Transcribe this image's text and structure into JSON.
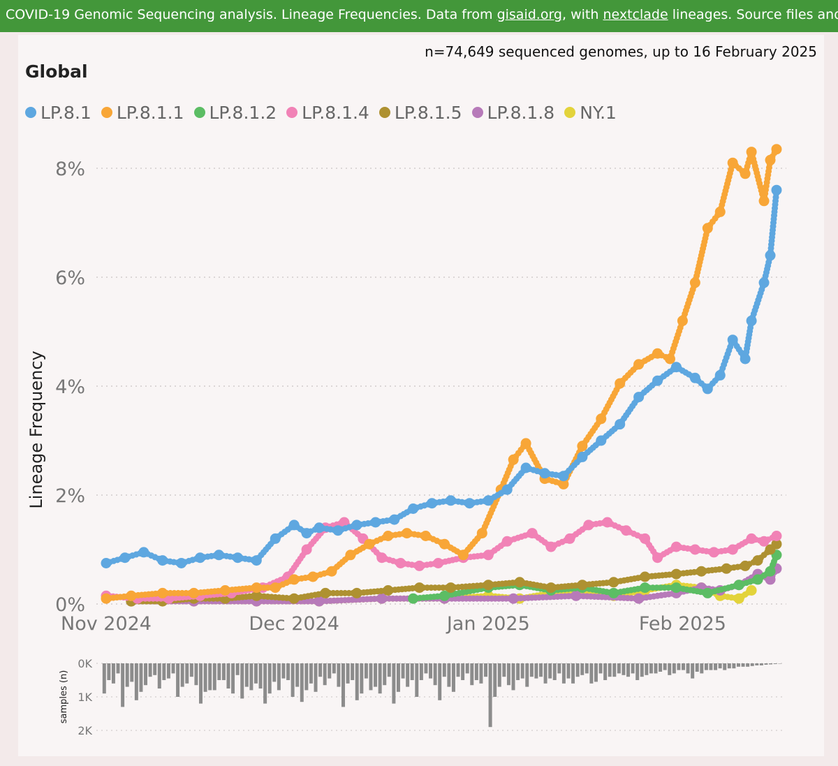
{
  "banner": {
    "text_1": "COVID-19 Genomic Sequencing analysis. Lineage Frequencies. Data from ",
    "link_1": "gisaid.org",
    "text_2": ", with ",
    "link_2": "nextclade",
    "text_3": " lineages. Source files and"
  },
  "subtitle": "n=74,649 sequenced genomes, up to 16 February 2025",
  "region": "Global",
  "colors": {
    "LP.8.1": "#5ea7e0",
    "LP.8.1.1": "#f8a637",
    "LP.8.1.2": "#5cbd64",
    "LP.8.1.4": "#f182b6",
    "LP.8.1.5": "#ae9131",
    "LP.8.1.8": "#b77ab9",
    "NY.1": "#e3d33b",
    "bars": "#8c8c8c"
  },
  "chart_data": [
    {
      "type": "scatter",
      "ylabel": "Lineage Frequency",
      "y_ticks": [
        "0%",
        "2%",
        "4%",
        "6%",
        "8%"
      ],
      "x_ticks": [
        "Nov 2024",
        "Dec 2024",
        "Jan 2025",
        "Feb 2025"
      ],
      "x_range": [
        "2024-11-01",
        "2025-02-16"
      ],
      "ylim": [
        0,
        8.5
      ],
      "grid": true,
      "legend_position": "top-left",
      "series": [
        {
          "name": "LP.8.1",
          "color": "#5ea7e0",
          "points": [
            [
              "2024-11-01",
              0.75
            ],
            [
              "2024-11-04",
              0.85
            ],
            [
              "2024-11-07",
              0.95
            ],
            [
              "2024-11-10",
              0.8
            ],
            [
              "2024-11-13",
              0.75
            ],
            [
              "2024-11-16",
              0.85
            ],
            [
              "2024-11-19",
              0.9
            ],
            [
              "2024-11-22",
              0.85
            ],
            [
              "2024-11-25",
              0.8
            ],
            [
              "2024-11-28",
              1.2
            ],
            [
              "2024-12-01",
              1.45
            ],
            [
              "2024-12-03",
              1.3
            ],
            [
              "2024-12-05",
              1.4
            ],
            [
              "2024-12-08",
              1.35
            ],
            [
              "2024-12-11",
              1.45
            ],
            [
              "2024-12-14",
              1.5
            ],
            [
              "2024-12-17",
              1.55
            ],
            [
              "2024-12-20",
              1.75
            ],
            [
              "2024-12-23",
              1.85
            ],
            [
              "2024-12-26",
              1.9
            ],
            [
              "2024-12-29",
              1.85
            ],
            [
              "2025-01-01",
              1.9
            ],
            [
              "2025-01-04",
              2.1
            ],
            [
              "2025-01-07",
              2.5
            ],
            [
              "2025-01-10",
              2.4
            ],
            [
              "2025-01-13",
              2.35
            ],
            [
              "2025-01-16",
              2.7
            ],
            [
              "2025-01-19",
              3.0
            ],
            [
              "2025-01-22",
              3.3
            ],
            [
              "2025-01-25",
              3.8
            ],
            [
              "2025-01-28",
              4.1
            ],
            [
              "2025-01-31",
              4.35
            ],
            [
              "2025-02-03",
              4.15
            ],
            [
              "2025-02-05",
              3.95
            ],
            [
              "2025-02-07",
              4.2
            ],
            [
              "2025-02-09",
              4.85
            ],
            [
              "2025-02-11",
              4.5
            ],
            [
              "2025-02-12",
              5.2
            ],
            [
              "2025-02-14",
              5.9
            ],
            [
              "2025-02-15",
              6.4
            ],
            [
              "2025-02-16",
              7.6
            ]
          ]
        },
        {
          "name": "LP.8.1.1",
          "color": "#f8a637",
          "points": [
            [
              "2024-11-01",
              0.1
            ],
            [
              "2024-11-05",
              0.15
            ],
            [
              "2024-11-10",
              0.2
            ],
            [
              "2024-11-15",
              0.2
            ],
            [
              "2024-11-20",
              0.25
            ],
            [
              "2024-11-25",
              0.3
            ],
            [
              "2024-11-28",
              0.3
            ],
            [
              "2024-12-01",
              0.45
            ],
            [
              "2024-12-04",
              0.5
            ],
            [
              "2024-12-07",
              0.6
            ],
            [
              "2024-12-10",
              0.9
            ],
            [
              "2024-12-13",
              1.1
            ],
            [
              "2024-12-16",
              1.25
            ],
            [
              "2024-12-19",
              1.3
            ],
            [
              "2024-12-22",
              1.25
            ],
            [
              "2024-12-25",
              1.1
            ],
            [
              "2024-12-28",
              0.9
            ],
            [
              "2024-12-31",
              1.3
            ],
            [
              "2025-01-03",
              2.1
            ],
            [
              "2025-01-05",
              2.65
            ],
            [
              "2025-01-07",
              2.95
            ],
            [
              "2025-01-10",
              2.3
            ],
            [
              "2025-01-13",
              2.2
            ],
            [
              "2025-01-16",
              2.9
            ],
            [
              "2025-01-19",
              3.4
            ],
            [
              "2025-01-22",
              4.05
            ],
            [
              "2025-01-25",
              4.4
            ],
            [
              "2025-01-28",
              4.6
            ],
            [
              "2025-01-30",
              4.5
            ],
            [
              "2025-02-01",
              5.2
            ],
            [
              "2025-02-03",
              5.9
            ],
            [
              "2025-02-05",
              6.9
            ],
            [
              "2025-02-07",
              7.2
            ],
            [
              "2025-02-09",
              8.1
            ],
            [
              "2025-02-11",
              7.9
            ],
            [
              "2025-02-12",
              8.3
            ],
            [
              "2025-02-14",
              7.4
            ],
            [
              "2025-02-15",
              8.15
            ],
            [
              "2025-02-16",
              8.35
            ]
          ]
        },
        {
          "name": "LP.8.1.2",
          "color": "#5cbd64",
          "points": [
            [
              "2024-12-20",
              0.1
            ],
            [
              "2024-12-25",
              0.15
            ],
            [
              "2025-01-01",
              0.3
            ],
            [
              "2025-01-06",
              0.35
            ],
            [
              "2025-01-11",
              0.25
            ],
            [
              "2025-01-16",
              0.3
            ],
            [
              "2025-01-21",
              0.2
            ],
            [
              "2025-01-26",
              0.3
            ],
            [
              "2025-01-31",
              0.3
            ],
            [
              "2025-02-05",
              0.2
            ],
            [
              "2025-02-10",
              0.35
            ],
            [
              "2025-02-13",
              0.45
            ],
            [
              "2025-02-15",
              0.6
            ],
            [
              "2025-02-16",
              0.9
            ]
          ]
        },
        {
          "name": "LP.8.1.4",
          "color": "#f182b6",
          "points": [
            [
              "2024-11-01",
              0.15
            ],
            [
              "2024-11-06",
              0.1
            ],
            [
              "2024-11-11",
              0.1
            ],
            [
              "2024-11-16",
              0.15
            ],
            [
              "2024-11-21",
              0.2
            ],
            [
              "2024-11-26",
              0.3
            ],
            [
              "2024-11-30",
              0.5
            ],
            [
              "2024-12-03",
              1.0
            ],
            [
              "2024-12-06",
              1.4
            ],
            [
              "2024-12-09",
              1.5
            ],
            [
              "2024-12-12",
              1.2
            ],
            [
              "2024-12-15",
              0.85
            ],
            [
              "2024-12-18",
              0.75
            ],
            [
              "2024-12-21",
              0.7
            ],
            [
              "2024-12-24",
              0.75
            ],
            [
              "2024-12-28",
              0.85
            ],
            [
              "2025-01-01",
              0.9
            ],
            [
              "2025-01-04",
              1.15
            ],
            [
              "2025-01-08",
              1.3
            ],
            [
              "2025-01-11",
              1.05
            ],
            [
              "2025-01-14",
              1.2
            ],
            [
              "2025-01-17",
              1.45
            ],
            [
              "2025-01-20",
              1.5
            ],
            [
              "2025-01-23",
              1.35
            ],
            [
              "2025-01-26",
              1.2
            ],
            [
              "2025-01-28",
              0.85
            ],
            [
              "2025-01-31",
              1.05
            ],
            [
              "2025-02-03",
              1.0
            ],
            [
              "2025-02-06",
              0.95
            ],
            [
              "2025-02-09",
              1.0
            ],
            [
              "2025-02-12",
              1.2
            ],
            [
              "2025-02-14",
              1.15
            ],
            [
              "2025-02-16",
              1.25
            ]
          ]
        },
        {
          "name": "LP.8.1.5",
          "color": "#ae9131",
          "points": [
            [
              "2024-11-05",
              0.05
            ],
            [
              "2024-11-10",
              0.05
            ],
            [
              "2024-11-15",
              0.1
            ],
            [
              "2024-11-20",
              0.1
            ],
            [
              "2024-11-25",
              0.15
            ],
            [
              "2024-12-01",
              0.1
            ],
            [
              "2024-12-06",
              0.2
            ],
            [
              "2024-12-11",
              0.2
            ],
            [
              "2024-12-16",
              0.25
            ],
            [
              "2024-12-21",
              0.3
            ],
            [
              "2024-12-26",
              0.3
            ],
            [
              "2025-01-01",
              0.35
            ],
            [
              "2025-01-06",
              0.4
            ],
            [
              "2025-01-11",
              0.3
            ],
            [
              "2025-01-16",
              0.35
            ],
            [
              "2025-01-21",
              0.4
            ],
            [
              "2025-01-26",
              0.5
            ],
            [
              "2025-01-31",
              0.55
            ],
            [
              "2025-02-04",
              0.6
            ],
            [
              "2025-02-08",
              0.65
            ],
            [
              "2025-02-11",
              0.7
            ],
            [
              "2025-02-13",
              0.8
            ],
            [
              "2025-02-15",
              1.0
            ],
            [
              "2025-02-16",
              1.1
            ]
          ]
        },
        {
          "name": "LP.8.1.8",
          "color": "#b77ab9",
          "points": [
            [
              "2024-11-05",
              0.05
            ],
            [
              "2024-11-15",
              0.05
            ],
            [
              "2024-11-25",
              0.05
            ],
            [
              "2024-12-05",
              0.05
            ],
            [
              "2024-12-15",
              0.1
            ],
            [
              "2024-12-25",
              0.1
            ],
            [
              "2025-01-05",
              0.1
            ],
            [
              "2025-01-15",
              0.15
            ],
            [
              "2025-01-25",
              0.1
            ],
            [
              "2025-01-31",
              0.2
            ],
            [
              "2025-02-04",
              0.3
            ],
            [
              "2025-02-07",
              0.25
            ],
            [
              "2025-02-10",
              0.35
            ],
            [
              "2025-02-13",
              0.55
            ],
            [
              "2025-02-15",
              0.45
            ],
            [
              "2025-02-16",
              0.65
            ]
          ]
        },
        {
          "name": "NY.1",
          "color": "#e3d33b",
          "points": [
            [
              "2024-11-05",
              0.05
            ],
            [
              "2024-11-15",
              0.05
            ],
            [
              "2024-11-25",
              0.05
            ],
            [
              "2024-12-05",
              0.05
            ],
            [
              "2024-12-15",
              0.1
            ],
            [
              "2024-12-25",
              0.1
            ],
            [
              "2025-01-01",
              0.15
            ],
            [
              "2025-01-06",
              0.1
            ],
            [
              "2025-01-11",
              0.2
            ],
            [
              "2025-01-16",
              0.2
            ],
            [
              "2025-01-21",
              0.15
            ],
            [
              "2025-01-26",
              0.25
            ],
            [
              "2025-01-31",
              0.35
            ],
            [
              "2025-02-04",
              0.3
            ],
            [
              "2025-02-07",
              0.15
            ],
            [
              "2025-02-10",
              0.1
            ],
            [
              "2025-02-12",
              0.25
            ]
          ]
        }
      ]
    },
    {
      "type": "bar",
      "ylabel": "samples (n)",
      "y_ticks": [
        "0K",
        "1K",
        "2K"
      ],
      "ylim": [
        0,
        2000
      ],
      "inverted": true,
      "grid": true,
      "x_range": [
        "2024-11-01",
        "2025-02-16"
      ],
      "values": [
        900,
        500,
        600,
        300,
        1300,
        700,
        550,
        1100,
        850,
        650,
        400,
        350,
        750,
        500,
        450,
        300,
        1000,
        700,
        600,
        400,
        650,
        1200,
        850,
        800,
        800,
        500,
        500,
        750,
        900,
        350,
        1050,
        700,
        800,
        600,
        750,
        1200,
        900,
        550,
        800,
        450,
        500,
        1000,
        700,
        1150,
        800,
        600,
        850,
        400,
        650,
        450,
        300,
        700,
        1300,
        600,
        500,
        1100,
        900,
        450,
        800,
        700,
        900,
        650,
        400,
        1200,
        850,
        450,
        700,
        500,
        1000,
        500,
        300,
        450,
        650,
        1100,
        400,
        700,
        850,
        400,
        500,
        300,
        650,
        500,
        600,
        400,
        1900,
        1000,
        700,
        400,
        650,
        800,
        500,
        450,
        700,
        400,
        450,
        400,
        600,
        450,
        500,
        300,
        600,
        450,
        600,
        400,
        350,
        300,
        600,
        550,
        300,
        500,
        400,
        400,
        300,
        350,
        400,
        300,
        500,
        400,
        350,
        300,
        300,
        250,
        200,
        350,
        300,
        200,
        200,
        300,
        450,
        250,
        300,
        200,
        200,
        200,
        150,
        200,
        150,
        150,
        100,
        100,
        100,
        80,
        60,
        60,
        40,
        30,
        20,
        10
      ]
    }
  ]
}
